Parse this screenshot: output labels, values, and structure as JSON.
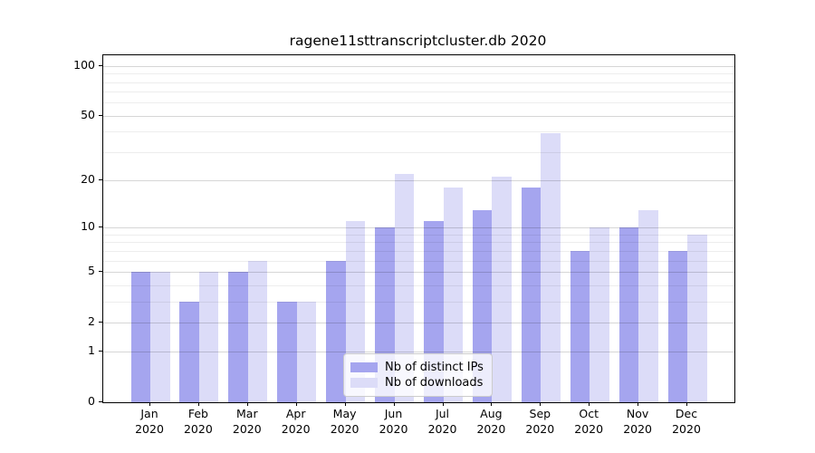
{
  "chart_data": {
    "type": "bar",
    "title": "ragene11sttranscriptcluster.db 2020",
    "categories": [
      "Jan 2020",
      "Feb 2020",
      "Mar 2020",
      "Apr 2020",
      "May 2020",
      "Jun 2020",
      "Jul 2020",
      "Aug 2020",
      "Sep 2020",
      "Oct 2020",
      "Nov 2020",
      "Dec 2020"
    ],
    "series": [
      {
        "name": "Nb of distinct IPs",
        "color": "#a5a5ef",
        "values": [
          5,
          3,
          5,
          3,
          6,
          10,
          11,
          13,
          18,
          7,
          10,
          7
        ]
      },
      {
        "name": "Nb of downloads",
        "color": "#dcdcf8",
        "values": [
          5,
          5,
          6,
          3,
          11,
          22,
          18,
          21,
          39,
          10,
          13,
          9
        ]
      }
    ],
    "y_scale": "log1p",
    "ylim": [
      0,
      116
    ],
    "y_ticks": [
      100,
      50,
      20,
      10,
      5,
      2,
      1,
      0
    ],
    "y_ticks_minor": [
      3,
      4,
      6,
      7,
      8,
      9,
      30,
      40,
      60,
      70,
      80,
      90
    ],
    "grid": "on",
    "legend_position": "bottom-center"
  },
  "colors": {
    "grid_major": "rgba(0,0,0,0.16)",
    "grid_minor": "rgba(0,0,0,0.07)",
    "spine": "#000000",
    "background": "#ffffff"
  }
}
